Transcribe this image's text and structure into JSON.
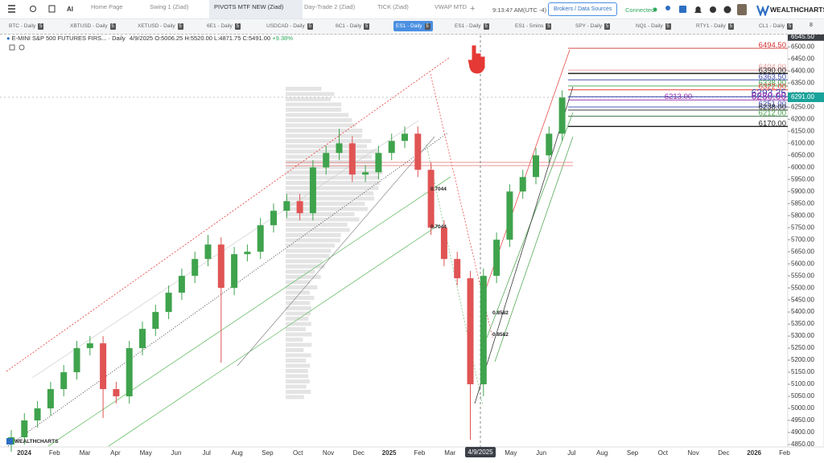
{
  "toolbar": {
    "tabs": [
      "Home Page",
      "Swing 1 (Ziad)",
      "PIVOTS MTF NEW (Ziad)",
      "Day-Trade 2 (Ziad)",
      "TICK (Ziad)",
      "VWAP MTD"
    ],
    "add_tab": "+",
    "ai": "AI",
    "time": "9:13:47 AM",
    "timezone": "(UTC -4)",
    "brokers_button": "Brokers / Data Sources",
    "status": "Connected",
    "logo": "WEALTHCHARTS"
  },
  "symbol_tabs": [
    {
      "name": "BTC - Daily",
      "badge": "5"
    },
    {
      "name": "XBTUSD - Daily",
      "badge": "5"
    },
    {
      "name": "XETUSD - Daily",
      "badge": "5"
    },
    {
      "name": "6E1 - Daily",
      "badge": "5"
    },
    {
      "name": "USDCAD - Daily",
      "badge": "5"
    },
    {
      "name": "6C1 - Daily",
      "badge": "5"
    },
    {
      "name": "ES1 - Daily",
      "badge": "5"
    },
    {
      "name": "ES1 - Daily",
      "badge": "5"
    },
    {
      "name": "ES1 - 5mins",
      "badge": "5"
    },
    {
      "name": "SPY - Daily",
      "badge": "5"
    },
    {
      "name": "NQ1 - Daily",
      "badge": "5"
    },
    {
      "name": "RTY1 - Daily",
      "badge": "5"
    },
    {
      "name": "CL1 - Daily",
      "badge": "5"
    }
  ],
  "more_tabs": "8",
  "legend": {
    "symbol": "E-MINI S&P 500 FUTURES FIRS...",
    "interval": "· Daily",
    "date": "4/9/2025",
    "open": "O:5006.25",
    "high": "H:5520.00",
    "low": "L:4871.75",
    "close": "C:5491.00",
    "change": "+9.38%"
  },
  "chart_data": {
    "type": "candlestick",
    "up_color": "#3fa34d",
    "down_color": "#e05454",
    "ohlc": [
      [
        4850,
        4910,
        4820,
        4880
      ],
      [
        4880,
        4980,
        4850,
        4950
      ],
      [
        4950,
        5030,
        4920,
        5000
      ],
      [
        5000,
        5110,
        4970,
        5080
      ],
      [
        5080,
        5180,
        5050,
        5150
      ],
      [
        5150,
        5280,
        5120,
        5250
      ],
      [
        5250,
        5300,
        5220,
        5270
      ],
      [
        5270,
        5300,
        4960,
        5080
      ],
      [
        5080,
        5110,
        5020,
        5050
      ],
      [
        5050,
        5280,
        5020,
        5250
      ],
      [
        5250,
        5360,
        5220,
        5330
      ],
      [
        5330,
        5430,
        5300,
        5400
      ],
      [
        5400,
        5510,
        5370,
        5480
      ],
      [
        5480,
        5580,
        5450,
        5550
      ],
      [
        5550,
        5650,
        5520,
        5620
      ],
      [
        5620,
        5720,
        5590,
        5680
      ],
      [
        5680,
        5710,
        5190,
        5500
      ],
      [
        5500,
        5670,
        5470,
        5640
      ],
      [
        5640,
        5680,
        5610,
        5650
      ],
      [
        5650,
        5790,
        5620,
        5760
      ],
      [
        5760,
        5850,
        5730,
        5820
      ],
      [
        5820,
        5890,
        5790,
        5860
      ],
      [
        5860,
        5890,
        5780,
        5810
      ],
      [
        5810,
        6030,
        5780,
        6000
      ],
      [
        6000,
        6090,
        5970,
        6060
      ],
      [
        6060,
        6160,
        6030,
        6100
      ],
      [
        6100,
        6130,
        5940,
        5970
      ],
      [
        5970,
        6010,
        5940,
        5980
      ],
      [
        5980,
        6090,
        5950,
        6060
      ],
      [
        6060,
        6140,
        6030,
        6110
      ],
      [
        6110,
        6170,
        6080,
        6140
      ],
      [
        6140,
        6170,
        5960,
        5990
      ],
      [
        5990,
        6020,
        5720,
        5750
      ],
      [
        5750,
        5780,
        5590,
        5620
      ],
      [
        5620,
        5650,
        5510,
        5540
      ],
      [
        5540,
        5570,
        4870,
        5100
      ],
      [
        5100,
        5580,
        5050,
        5550
      ],
      [
        5550,
        5730,
        5520,
        5700
      ],
      [
        5700,
        5930,
        5670,
        5900
      ],
      [
        5900,
        5990,
        5870,
        5960
      ],
      [
        5960,
        6080,
        5930,
        6050
      ],
      [
        6050,
        6170,
        6020,
        6140
      ],
      [
        6140,
        6320,
        6110,
        6290
      ]
    ],
    "ylim": [
      4840,
      6548
    ],
    "yticks": [
      {
        "value": 4850,
        "label": "4850.00"
      },
      {
        "value": 4900,
        "label": "4900.00"
      },
      {
        "value": 4950,
        "label": "4950.00"
      },
      {
        "value": 5000,
        "label": "5000.00"
      },
      {
        "value": 5050,
        "label": "5050.00"
      },
      {
        "value": 5100,
        "label": "5100.00"
      },
      {
        "value": 5150,
        "label": "5150.00"
      },
      {
        "value": 5200,
        "label": "5200.00"
      },
      {
        "value": 5250,
        "label": "5250.00"
      },
      {
        "value": 5300,
        "label": "5300.00"
      },
      {
        "value": 5350,
        "label": "5350.00"
      },
      {
        "value": 5400,
        "label": "5400.00"
      },
      {
        "value": 5450,
        "label": "5450.00"
      },
      {
        "value": 5500,
        "label": "5500.00"
      },
      {
        "value": 5550,
        "label": "5550.00"
      },
      {
        "value": 5600,
        "label": "5600.00"
      },
      {
        "value": 5650,
        "label": "5650.00"
      },
      {
        "value": 5700,
        "label": "5700.00"
      },
      {
        "value": 5750,
        "label": "5750.00"
      },
      {
        "value": 5800,
        "label": "5800.00"
      },
      {
        "value": 5850,
        "label": "5850.00"
      },
      {
        "value": 5900,
        "label": "5900.00"
      },
      {
        "value": 5950,
        "label": "5950.00"
      },
      {
        "value": 6000,
        "label": "6000.00"
      },
      {
        "value": 6050,
        "label": "6050.00"
      },
      {
        "value": 6100,
        "label": "6100.00"
      },
      {
        "value": 6150,
        "label": "6150.00"
      },
      {
        "value": 6200,
        "label": "6200.00"
      },
      {
        "value": 6250,
        "label": "6250.00"
      },
      {
        "value": 6300,
        "label": "6300.00"
      },
      {
        "value": 6350,
        "label": "6350.00"
      },
      {
        "value": 6400,
        "label": "6400.00"
      },
      {
        "value": 6450,
        "label": "6450.00"
      },
      {
        "value": 6500,
        "label": "6500.00"
      }
    ],
    "x_labels": [
      "2024",
      "Feb",
      "Mar",
      "Apr",
      "May",
      "Jun",
      "Jul",
      "Aug",
      "Sep",
      "Oct",
      "Nov",
      "Dec",
      "2025",
      "Feb",
      "Mar",
      null,
      "May",
      "Jun",
      "Jul",
      "Aug",
      "Sep",
      "Oct",
      "Nov",
      "Dec",
      "2026",
      "Feb"
    ],
    "crosshair_label": "4/9/2025",
    "top_price": {
      "value": 6545.5,
      "label": "6545.50"
    },
    "last_price": {
      "value": 6291,
      "label": "6291.00"
    },
    "levels": [
      {
        "value": 6494.5,
        "label": "6494.50",
        "color": "#d32f2f"
      },
      {
        "value": 6404,
        "label": "6404.00",
        "color": "#ef9a9a"
      },
      {
        "value": 6390,
        "label": "6390.00",
        "color": "#222222"
      },
      {
        "value": 6363.5,
        "label": "6363.50",
        "color": "#3949ab"
      },
      {
        "value": 6338,
        "label": "6338.00",
        "color": "#43a047"
      },
      {
        "value": 6322,
        "label": "6322.00",
        "color": "#e53935"
      },
      {
        "value": 6293.25,
        "label": "6293.25",
        "color": "#3949ab"
      },
      {
        "value": 6280,
        "label": "6280.00",
        "color": "#8e24aa"
      },
      {
        "value": 6251,
        "label": "6251.00",
        "color": "#3949ab"
      },
      {
        "value": 6238,
        "label": "6238.00",
        "color": "#222222"
      },
      {
        "value": 6213,
        "label": "6213.00",
        "color": "#8e24aa"
      },
      {
        "value": 6212,
        "label": "6212.00",
        "color": "#43a047"
      },
      {
        "value": 6170,
        "label": "6170.00",
        "color": "#222222"
      }
    ],
    "fib_labels": [
      "0.7044",
      "0.7044",
      "0.8582",
      "0.8582"
    ],
    "watermark": "WEALTHCHARTS"
  }
}
